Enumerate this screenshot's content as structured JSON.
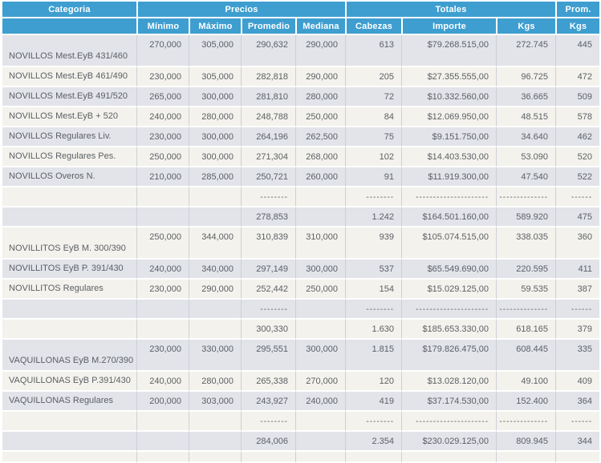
{
  "colors": {
    "header_blue": "#3e9ed0",
    "row_gray": "#e2e4e9",
    "row_cream": "#f4f2ec",
    "text_gray": "#5b6066"
  },
  "table": {
    "header": {
      "categoria": "Categoria",
      "precios": "Precios",
      "totales": "Totales",
      "prom": "Prom.",
      "sub": [
        "Mínimo",
        "Máximo",
        "Promedio",
        "Mediana",
        "Cabezas",
        "Importe",
        "Kgs",
        "Kgs"
      ]
    },
    "rows": [
      {
        "type": "data",
        "tall": true,
        "cells": [
          "NOVILLOS Mest.EyB 431/460",
          "270,000",
          "305,000",
          "290,632",
          "290,000",
          "613",
          "$79.268.515,00",
          "272.745",
          "445"
        ]
      },
      {
        "type": "data",
        "tall": false,
        "cells": [
          "NOVILLOS Mest.EyB 461/490",
          "230,000",
          "305,000",
          "282,818",
          "290,000",
          "205",
          "$27.355.555,00",
          "96.725",
          "472"
        ]
      },
      {
        "type": "data",
        "tall": false,
        "cells": [
          "NOVILLOS Mest.EyB 491/520",
          "265,000",
          "300,000",
          "281,810",
          "280,000",
          "72",
          "$10.332.560,00",
          "36.665",
          "509"
        ]
      },
      {
        "type": "data",
        "tall": false,
        "cells": [
          "NOVILLOS Mest.EyB + 520",
          "240,000",
          "280,000",
          "248,788",
          "250,000",
          "84",
          "$12.069.950,00",
          "48.515",
          "578"
        ]
      },
      {
        "type": "data",
        "tall": false,
        "cells": [
          "NOVILLOS Regulares Liv.",
          "230,000",
          "300,000",
          "264,196",
          "262,500",
          "75",
          "$9.151.750,00",
          "34.640",
          "462"
        ]
      },
      {
        "type": "data",
        "tall": false,
        "cells": [
          "NOVILLOS Regulares Pes.",
          "250,000",
          "300,000",
          "271,304",
          "268,000",
          "102",
          "$14.403.530,00",
          "53.090",
          "520"
        ]
      },
      {
        "type": "data",
        "tall": false,
        "cells": [
          "NOVILLOS Overos N.",
          "210,000",
          "285,000",
          "250,721",
          "260,000",
          "91",
          "$11.919.300,00",
          "47.540",
          "522"
        ]
      },
      {
        "type": "separator",
        "tall": false,
        "cells": [
          "",
          "",
          "",
          "--------",
          "",
          "--------",
          "---------------------",
          "--------------",
          "------"
        ]
      },
      {
        "type": "subtotal",
        "tall": false,
        "cells": [
          "",
          "",
          "",
          "278,853",
          "",
          "1.242",
          "$164.501.160,00",
          "589.920",
          "475"
        ]
      },
      {
        "type": "data",
        "tall": true,
        "cells": [
          "NOVILLITOS EyB M. 300/390",
          "250,000",
          "344,000",
          "310,839",
          "310,000",
          "939",
          "$105.074.515,00",
          "338.035",
          "360"
        ]
      },
      {
        "type": "data",
        "tall": false,
        "cells": [
          "NOVILLITOS EyB P. 391/430",
          "240,000",
          "340,000",
          "297,149",
          "300,000",
          "537",
          "$65.549.690,00",
          "220.595",
          "411"
        ]
      },
      {
        "type": "data",
        "tall": false,
        "cells": [
          "NOVILLITOS Regulares",
          "230,000",
          "290,000",
          "252,442",
          "250,000",
          "154",
          "$15.029.125,00",
          "59.535",
          "387"
        ]
      },
      {
        "type": "separator",
        "tall": false,
        "cells": [
          "",
          "",
          "",
          "--------",
          "",
          "--------",
          "---------------------",
          "--------------",
          "------"
        ]
      },
      {
        "type": "subtotal",
        "tall": false,
        "cells": [
          "",
          "",
          "",
          "300,330",
          "",
          "1.630",
          "$185.653.330,00",
          "618.165",
          "379"
        ]
      },
      {
        "type": "data",
        "tall": true,
        "cells": [
          "VAQUILLONAS EyB M.270/390",
          "230,000",
          "330,000",
          "295,551",
          "300,000",
          "1.815",
          "$179.826.475,00",
          "608.445",
          "335"
        ]
      },
      {
        "type": "data",
        "tall": false,
        "cells": [
          "VAQUILLONAS EyB P.391/430",
          "240,000",
          "280,000",
          "265,338",
          "270,000",
          "120",
          "$13.028.120,00",
          "49.100",
          "409"
        ]
      },
      {
        "type": "data",
        "tall": false,
        "cells": [
          "VAQUILLONAS Regulares",
          "200,000",
          "303,000",
          "243,927",
          "240,000",
          "419",
          "$37.174.530,00",
          "152.400",
          "364"
        ]
      },
      {
        "type": "separator",
        "tall": false,
        "cells": [
          "",
          "",
          "",
          "--------",
          "",
          "--------",
          "---------------------",
          "--------------",
          "------"
        ]
      },
      {
        "type": "subtotal",
        "tall": false,
        "cells": [
          "",
          "",
          "",
          "284,006",
          "",
          "2.354",
          "$230.029.125,00",
          "809.945",
          "344"
        ]
      },
      {
        "type": "partial",
        "tall": false,
        "cells": [
          "",
          "",
          "",
          "",
          "",
          "",
          "",
          "",
          ""
        ]
      }
    ]
  }
}
